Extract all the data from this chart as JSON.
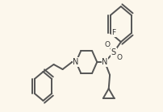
{
  "background_color": "#fcf7ec",
  "line_color": "#555555",
  "line_width": 1.4,
  "text_color": "#333333",
  "label_F": "F",
  "label_N1": "N",
  "label_N2": "N",
  "label_S": "S",
  "label_O1": "O",
  "label_O2": "O",
  "figsize": [
    2.02,
    1.39
  ],
  "dpi": 100
}
